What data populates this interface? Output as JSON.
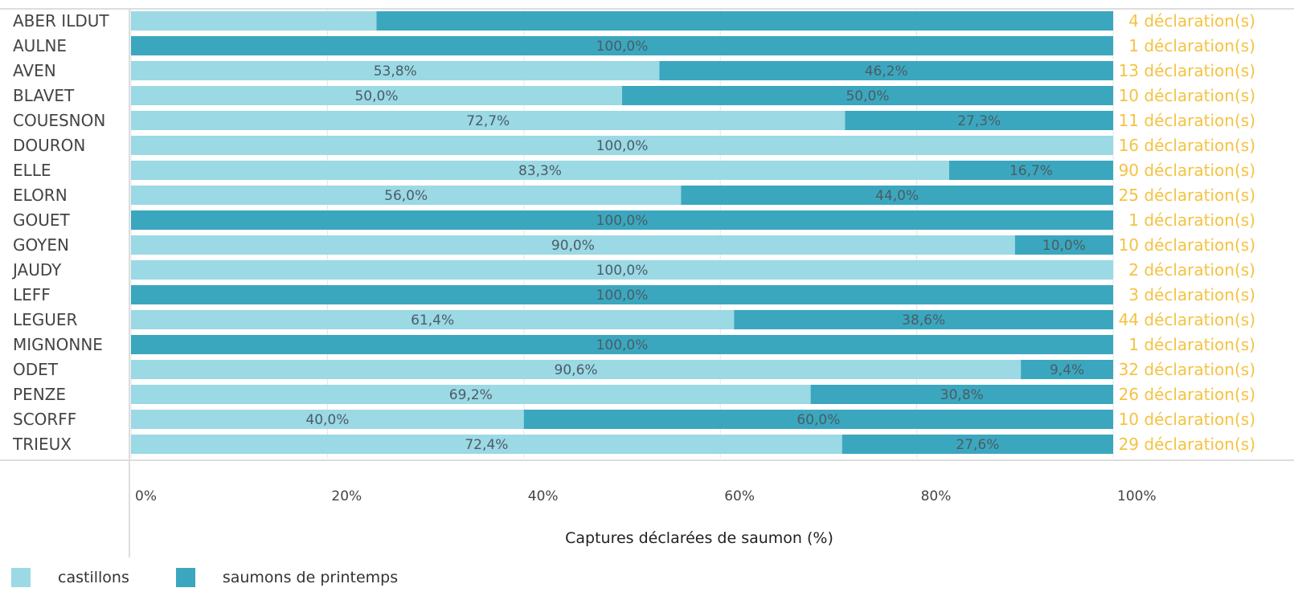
{
  "chart_data": {
    "type": "bar",
    "orientation": "horizontal",
    "stacked": true,
    "xlabel": "Captures déclarées de saumon (%)",
    "xlim": [
      0,
      100
    ],
    "x_ticks": [
      "0%",
      "20%",
      "40%",
      "60%",
      "80%",
      "100%"
    ],
    "grid": true,
    "legend_position": "bottom-left",
    "categories": [
      "ABER ILDUT",
      "AULNE",
      "AVEN",
      "BLAVET",
      "COUESNON",
      "DOURON",
      "ELLE",
      "ELORN",
      "GOUET",
      "GOYEN",
      "JAUDY",
      "LEFF",
      "LEGUER",
      "MIGNONNE",
      "ODET",
      "PENZE",
      "SCORFF",
      "TRIEUX"
    ],
    "series": [
      {
        "name": "castillons",
        "color": "#9bd9e4",
        "values": [
          25,
          0,
          53.8,
          50,
          72.7,
          100,
          83.3,
          56,
          0,
          90,
          100,
          0,
          61.4,
          0,
          90.6,
          69.2,
          40,
          72.4
        ],
        "labels": [
          "",
          "",
          "53,8%",
          "50,0%",
          "72,7%",
          "100,0%",
          "83,3%",
          "56,0%",
          "",
          "90,0%",
          "100,0%",
          "",
          "61,4%",
          "",
          "90,6%",
          "69,2%",
          "40,0%",
          "72,4%"
        ]
      },
      {
        "name": "saumons de printemps",
        "color": "#3ba7be",
        "values": [
          75,
          100,
          46.2,
          50,
          27.3,
          0,
          16.7,
          44,
          100,
          10,
          0,
          100,
          38.6,
          100,
          9.4,
          30.8,
          60,
          27.6
        ],
        "labels": [
          "",
          "100,0%",
          "46,2%",
          "50,0%",
          "27,3%",
          "",
          "16,7%",
          "44,0%",
          "100,0%",
          "10,0%",
          "",
          "100,0%",
          "38,6%",
          "100,0%",
          "9,4%",
          "30,8%",
          "60,0%",
          "27,6%"
        ]
      }
    ],
    "counts": [
      "4 déclaration(s)",
      "1 déclaration(s)",
      "13 déclaration(s)",
      "10 déclaration(s)",
      "11 déclaration(s)",
      "16 déclaration(s)",
      "90 déclaration(s)",
      "25 déclaration(s)",
      "1 déclaration(s)",
      "10 déclaration(s)",
      "2 déclaration(s)",
      "3 déclaration(s)",
      "44 déclaration(s)",
      "1 déclaration(s)",
      "32 déclaration(s)",
      "26 déclaration(s)",
      "10 déclaration(s)",
      "29 déclaration(s)"
    ],
    "count_color": "#f5c242"
  },
  "legend": {
    "items": [
      {
        "label": "castillons",
        "color": "#9bd9e4"
      },
      {
        "label": "saumons de printemps",
        "color": "#3ba7be"
      }
    ]
  }
}
